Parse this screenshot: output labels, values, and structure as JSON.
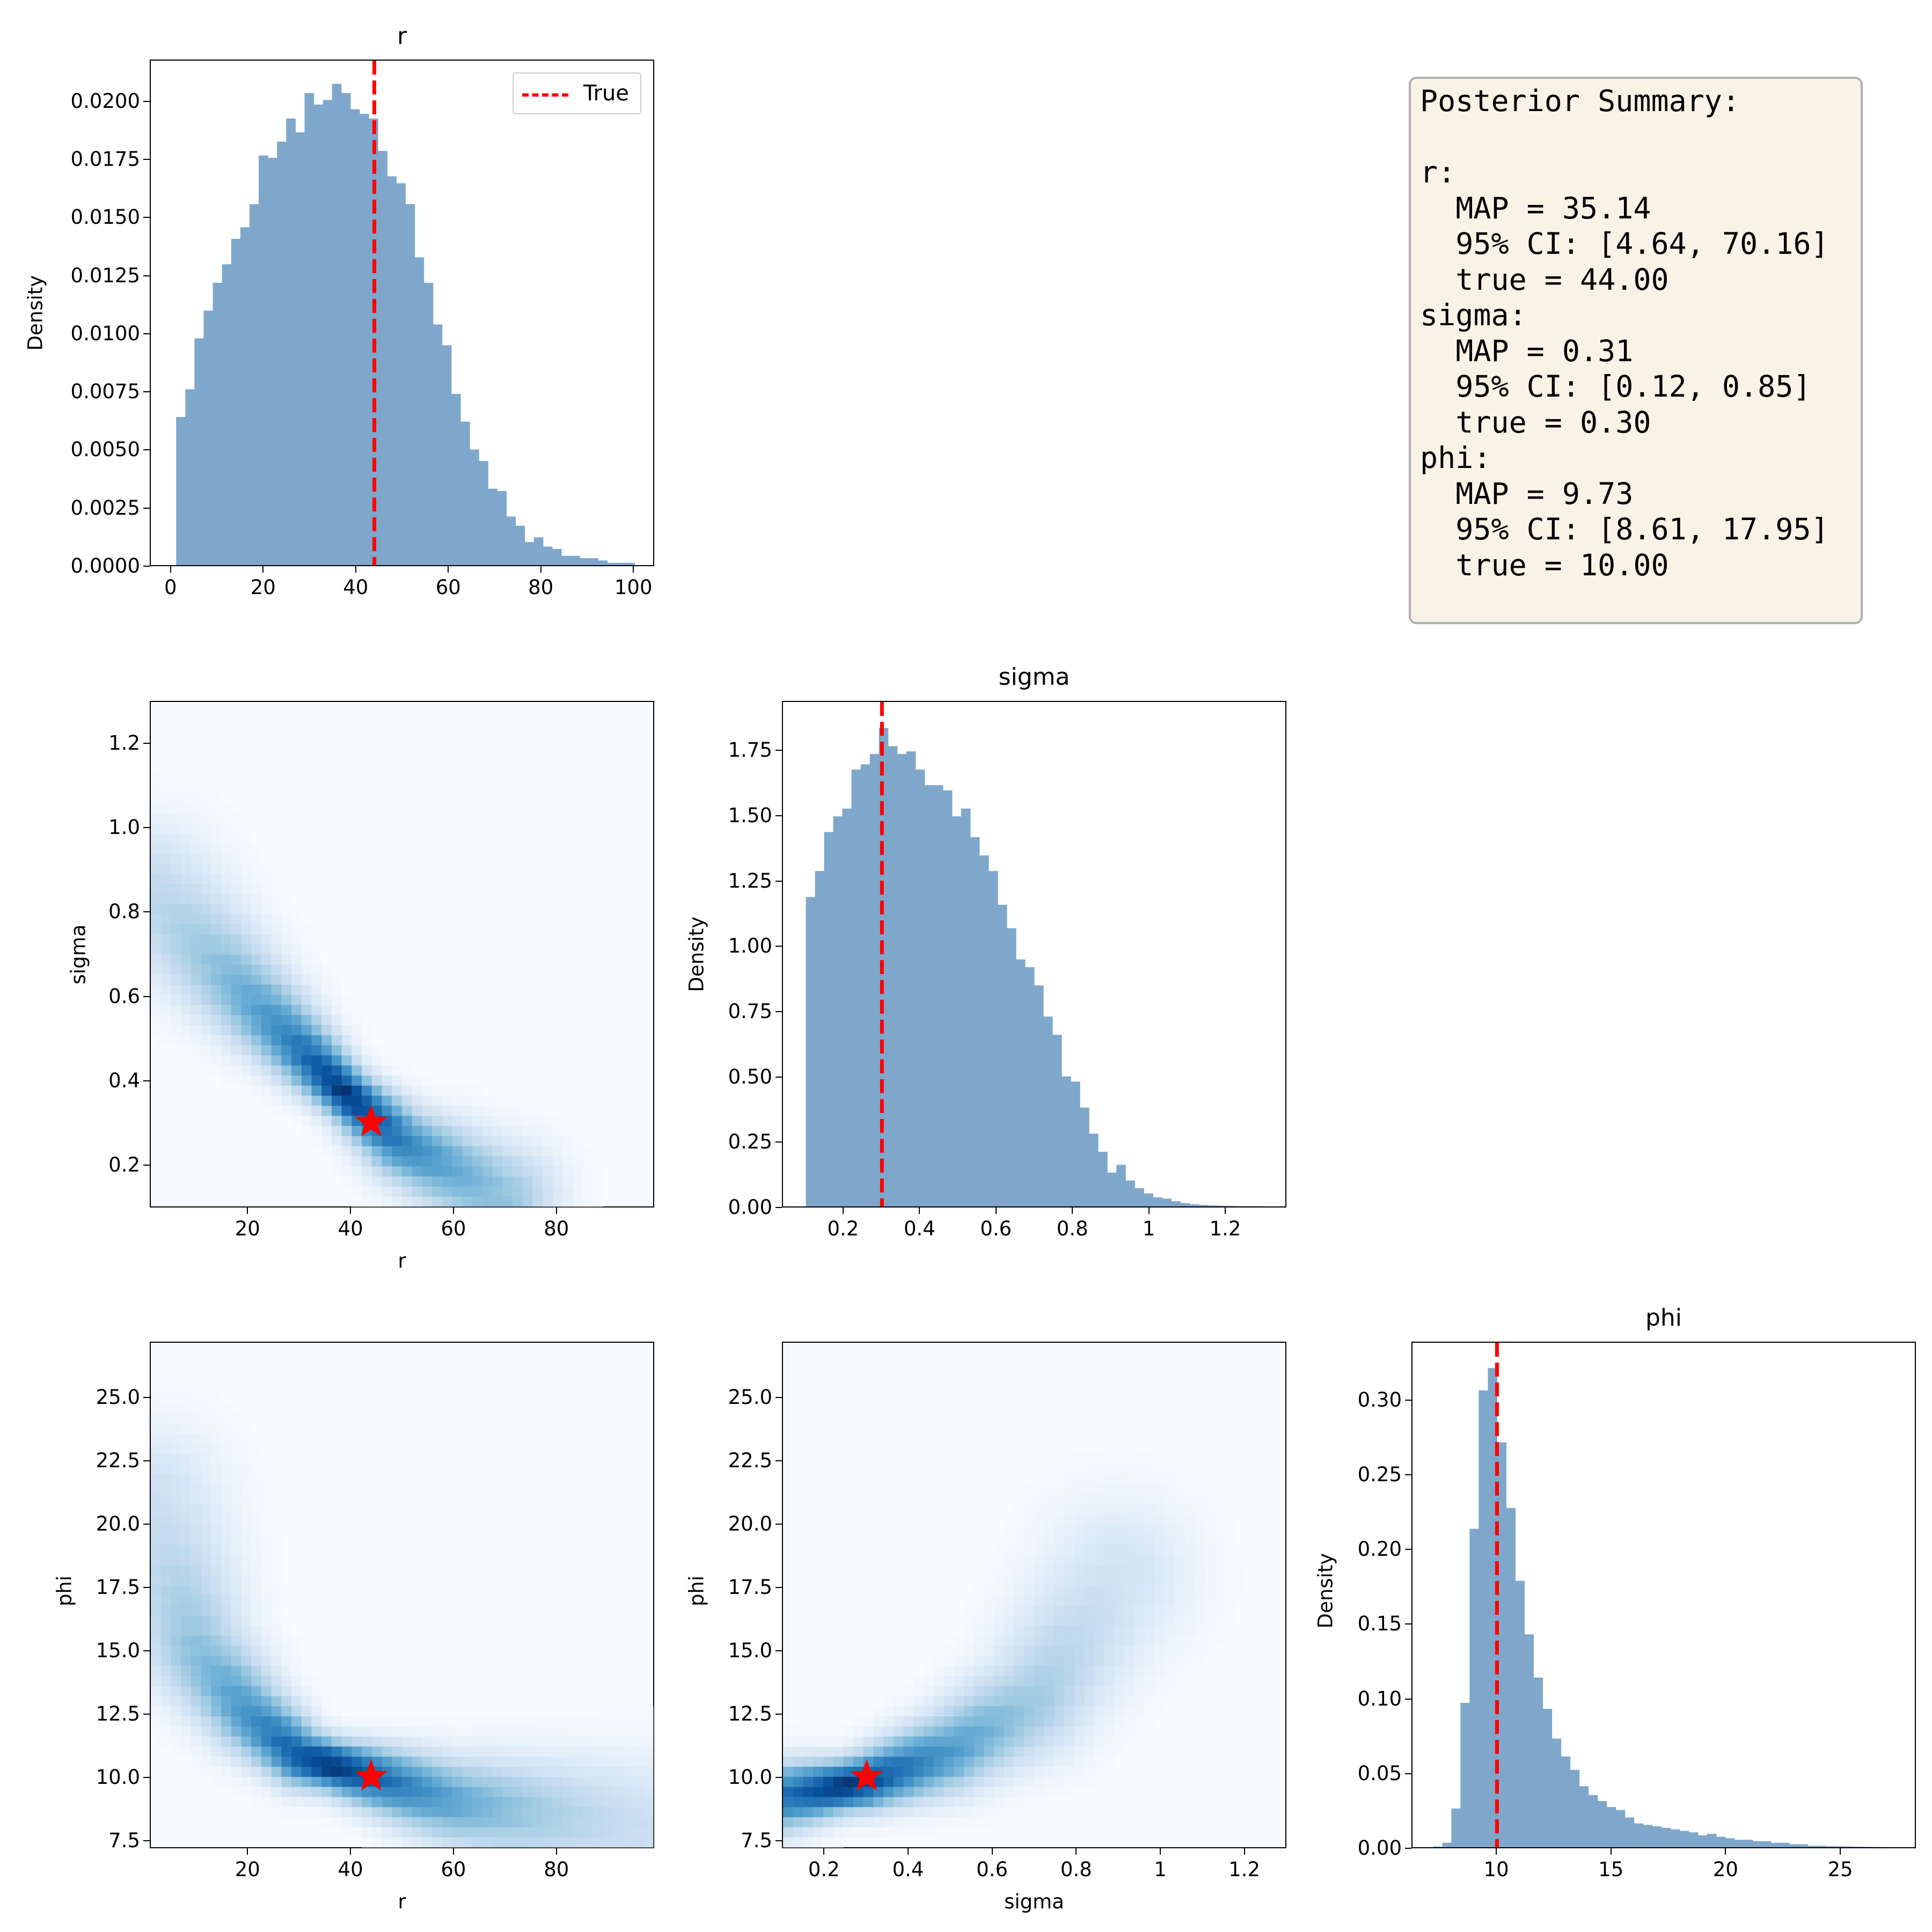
{
  "figure": {
    "panels": {
      "r_hist": {
        "title": "r",
        "ylabel": "Density",
        "legend_label": "True"
      },
      "sigma_hist": {
        "title": "sigma",
        "ylabel": "Density"
      },
      "phi_hist": {
        "title": "phi",
        "ylabel": "Density"
      },
      "r_sigma": {
        "xlabel": "r",
        "ylabel": "sigma"
      },
      "r_phi": {
        "xlabel": "r",
        "ylabel": "phi"
      },
      "sigma_phi": {
        "xlabel": "sigma",
        "ylabel": "phi"
      }
    },
    "summary": {
      "heading": "Posterior Summary:",
      "r_label": "r:",
      "r_map": "  MAP = 35.14",
      "r_ci": "  95% CI: [4.64, 70.16]",
      "r_true": "  true = 44.00",
      "sigma_label": "sigma:",
      "sigma_map": "  MAP = 0.31",
      "sigma_ci": "  95% CI: [0.12, 0.85]",
      "sigma_true": "  true = 0.30",
      "phi_label": "phi:",
      "phi_map": "  MAP = 9.73",
      "phi_ci": "  95% CI: [8.61, 17.95]",
      "phi_true": "  true = 10.00"
    },
    "colors": {
      "hist_fill": "#7fa7cb",
      "true_line": "#ff0000",
      "cmap": "Blues",
      "summary_bg": "#f8f3e6"
    }
  },
  "chart_data": [
    {
      "type": "bar",
      "title": "r",
      "xlabel": "",
      "ylabel": "Density",
      "xlim": [
        -4.5,
        104.5
      ],
      "ylim": [
        0,
        0.0218
      ],
      "xticks": [
        0,
        20,
        40,
        60,
        80,
        100
      ],
      "yticks": [
        0.0,
        0.0025,
        0.005,
        0.0075,
        0.01,
        0.0125,
        0.015,
        0.0175,
        0.02
      ],
      "ytick_labels": [
        "0.0000",
        "0.0025",
        "0.0050",
        "0.0075",
        "0.0100",
        "0.0125",
        "0.0150",
        "0.0175",
        "0.0200"
      ],
      "bin_start": 1.0,
      "bin_width": 1.99,
      "values": [
        0.0064,
        0.0076,
        0.0098,
        0.011,
        0.0122,
        0.013,
        0.0141,
        0.0146,
        0.0156,
        0.0177,
        0.0176,
        0.0183,
        0.0193,
        0.0187,
        0.0204,
        0.0199,
        0.0201,
        0.0208,
        0.0204,
        0.0197,
        0.0195,
        0.0193,
        0.0179,
        0.0168,
        0.0165,
        0.0156,
        0.0133,
        0.0122,
        0.0104,
        0.0095,
        0.0074,
        0.0062,
        0.005,
        0.0045,
        0.0033,
        0.0032,
        0.0021,
        0.0017,
        0.001,
        0.0012,
        0.0008,
        0.0007,
        0.0004,
        0.0004,
        0.0003,
        0.0003,
        0.0002,
        0.0001,
        0.0001,
        0.0001
      ],
      "vline": {
        "x": 44.0,
        "label": "True",
        "style": "dashed",
        "color": "#ff0000"
      },
      "legend_position": "upper right",
      "grid": false
    },
    {
      "type": "heatmap",
      "xlabel": "r",
      "ylabel": "sigma",
      "xlim": [
        1,
        99
      ],
      "ylim": [
        0.1,
        1.3
      ],
      "xticks": [
        20,
        40,
        60,
        80
      ],
      "yticks": [
        0.2,
        0.4,
        0.6,
        0.8,
        1.0,
        1.2
      ],
      "cmap": "Blues",
      "ridge": {
        "from": [
          1,
          0.85
        ],
        "through": [
          [
            20,
            0.6
          ],
          [
            38,
            0.38
          ],
          [
            50,
            0.25
          ]
        ],
        "to": [
          70,
          0.12
        ]
      },
      "peak": [
        38,
        0.36
      ],
      "marker": {
        "type": "star",
        "x": 44.0,
        "y": 0.3,
        "color": "#ff0000"
      }
    },
    {
      "type": "bar",
      "title": "sigma",
      "xlabel": "",
      "ylabel": "Density",
      "xlim": [
        0.04,
        1.36
      ],
      "ylim": [
        0,
        1.94
      ],
      "xticks": [
        0.2,
        0.4,
        0.6,
        0.8,
        1.0,
        1.2
      ],
      "yticks": [
        0.0,
        0.25,
        0.5,
        0.75,
        1.0,
        1.25,
        1.5,
        1.75
      ],
      "ytick_labels": [
        "0.00",
        "0.25",
        "0.50",
        "0.75",
        "1.00",
        "1.25",
        "1.50",
        "1.75"
      ],
      "bin_start": 0.1,
      "bin_width": 0.024,
      "values": [
        1.19,
        1.29,
        1.44,
        1.5,
        1.53,
        1.68,
        1.7,
        1.74,
        1.84,
        1.77,
        1.74,
        1.75,
        1.68,
        1.62,
        1.62,
        1.6,
        1.5,
        1.53,
        1.42,
        1.35,
        1.29,
        1.16,
        1.07,
        0.95,
        0.92,
        0.85,
        0.73,
        0.66,
        0.5,
        0.48,
        0.38,
        0.28,
        0.21,
        0.13,
        0.16,
        0.1,
        0.07,
        0.05,
        0.035,
        0.03,
        0.02,
        0.013,
        0.008,
        0.006,
        0.004,
        0.003,
        0.002,
        0.001,
        0.001,
        0.0005
      ],
      "vline": {
        "x": 0.3,
        "style": "dashed",
        "color": "#ff0000"
      },
      "grid": false
    },
    {
      "type": "heatmap",
      "xlabel": "r",
      "ylabel": "phi",
      "xlim": [
        1,
        99
      ],
      "ylim": [
        7.2,
        27.2
      ],
      "xticks": [
        20,
        40,
        60,
        80
      ],
      "yticks": [
        7.5,
        10.0,
        12.5,
        15.0,
        17.5,
        20.0,
        22.5,
        25.0
      ],
      "cmap": "Blues",
      "ridge": {
        "from": [
          1,
          21
        ],
        "through": [
          [
            10,
            15
          ],
          [
            20,
            12.5
          ],
          [
            30,
            10.8
          ],
          [
            44,
            10.0
          ],
          [
            60,
            9.0
          ]
        ],
        "to": [
          95,
          8.0
        ]
      },
      "peak": [
        36,
        10.2
      ],
      "marker": {
        "type": "star",
        "x": 44.0,
        "y": 10.0,
        "color": "#ff0000"
      }
    },
    {
      "type": "heatmap",
      "xlabel": "sigma",
      "ylabel": "phi",
      "xlim": [
        0.1,
        1.3
      ],
      "ylim": [
        7.2,
        27.2
      ],
      "xticks": [
        0.2,
        0.4,
        0.6,
        0.8,
        1.0,
        1.2
      ],
      "yticks": [
        7.5,
        10.0,
        12.5,
        15.0,
        17.5,
        20.0,
        22.5,
        25.0
      ],
      "cmap": "Blues",
      "ridge": {
        "from": [
          0.1,
          9.2
        ],
        "through": [
          [
            0.3,
            9.8
          ],
          [
            0.5,
            11.0
          ],
          [
            0.7,
            13.0
          ]
        ],
        "to": [
          0.9,
          18
        ]
      },
      "peak": [
        0.25,
        9.5
      ],
      "marker": {
        "type": "star",
        "x": 0.3,
        "y": 10.0,
        "color": "#ff0000"
      }
    },
    {
      "type": "bar",
      "title": "phi",
      "xlabel": "",
      "ylabel": "Density",
      "xlim": [
        6.3,
        28.3
      ],
      "ylim": [
        0,
        0.339
      ],
      "xticks": [
        10,
        15,
        20,
        25
      ],
      "yticks": [
        0.0,
        0.05,
        0.1,
        0.15,
        0.2,
        0.25,
        0.3
      ],
      "ytick_labels": [
        "0.00",
        "0.05",
        "0.10",
        "0.15",
        "0.20",
        "0.25",
        "0.30"
      ],
      "bin_start": 7.2,
      "bin_width": 0.4,
      "values": [
        0.0005,
        0.003,
        0.026,
        0.097,
        0.214,
        0.307,
        0.322,
        0.272,
        0.228,
        0.179,
        0.143,
        0.114,
        0.093,
        0.073,
        0.061,
        0.052,
        0.041,
        0.035,
        0.031,
        0.027,
        0.025,
        0.02,
        0.016,
        0.015,
        0.014,
        0.013,
        0.012,
        0.011,
        0.01,
        0.008,
        0.009,
        0.007,
        0.006,
        0.005,
        0.005,
        0.004,
        0.004,
        0.003,
        0.003,
        0.002,
        0.002,
        0.001,
        0.001,
        0.0008,
        0.0006,
        0.0005,
        0.0004,
        0.0003,
        0.0002,
        0.0001
      ],
      "vline": {
        "x": 10.0,
        "style": "dashed",
        "color": "#ff0000"
      },
      "grid": false
    }
  ]
}
